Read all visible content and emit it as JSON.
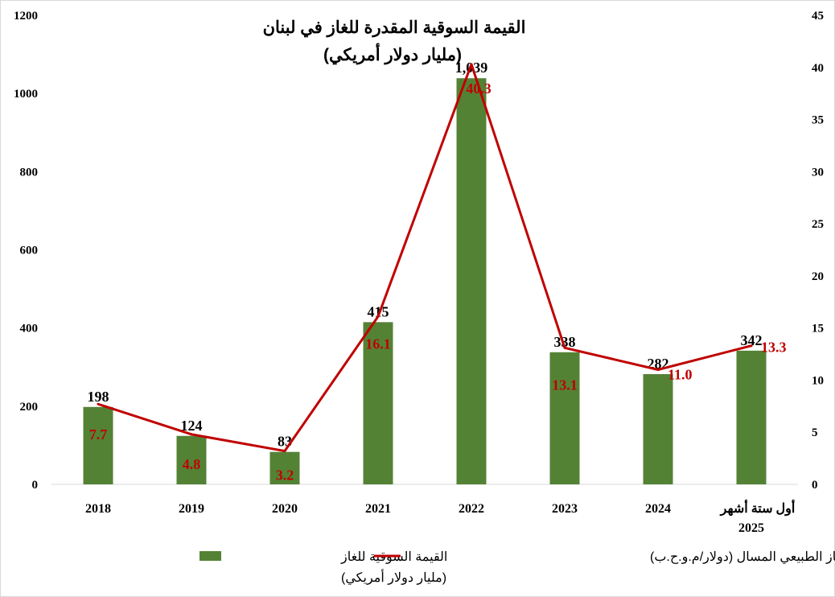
{
  "chart_data": {
    "type": "bar+line",
    "title_line1": "القيمة السوقية المقدرة  للغاز في لبنان",
    "title_line2": "(مليار دولار أمريكي)",
    "categories": [
      "2018",
      "2019",
      "2020",
      "2021",
      "2022",
      "2023",
      "2024",
      [
        "أول ستة أشهر",
        "2025"
      ]
    ],
    "series": [
      {
        "name": "القيمة السوقية للغاز (مليار دولار أمريكي)",
        "legend_lines": [
          "القيمة السوقية للغاز",
          "(مليار دولار أمريكي)"
        ],
        "type": "bar",
        "axis": "left",
        "color": "#548235",
        "values": [
          198,
          124,
          83,
          415,
          1039,
          338,
          282,
          342
        ],
        "labels": [
          "198",
          "124",
          "83",
          "415",
          "1,039",
          "338",
          "282",
          "342"
        ]
      },
      {
        "name": "سعر الغاز الطبيعي المسال (دولار/م.و.ح.ب)",
        "legend_lines": [
          "سعر الغاز الطبيعي المسال (دولار/م.و.ح.ب)"
        ],
        "type": "line",
        "axis": "right",
        "color": "#c00000",
        "values": [
          7.7,
          4.8,
          3.2,
          16.1,
          40.3,
          13.1,
          11.0,
          13.3
        ],
        "labels": [
          "7.7",
          "4.8",
          "3.2",
          "16.1",
          "40.3",
          "13.1",
          "11.0",
          "13.3"
        ]
      }
    ],
    "y_left": {
      "min": 0,
      "max": 1200,
      "step": 200,
      "ticks": [
        "0",
        "200",
        "400",
        "600",
        "800",
        "1000",
        "1200"
      ]
    },
    "y_right": {
      "min": 0,
      "max": 45,
      "step": 5,
      "ticks": [
        "0",
        "5",
        "10",
        "15",
        "20",
        "25",
        "30",
        "35",
        "40",
        "45"
      ]
    },
    "grid": false,
    "legend_position": "bottom"
  }
}
